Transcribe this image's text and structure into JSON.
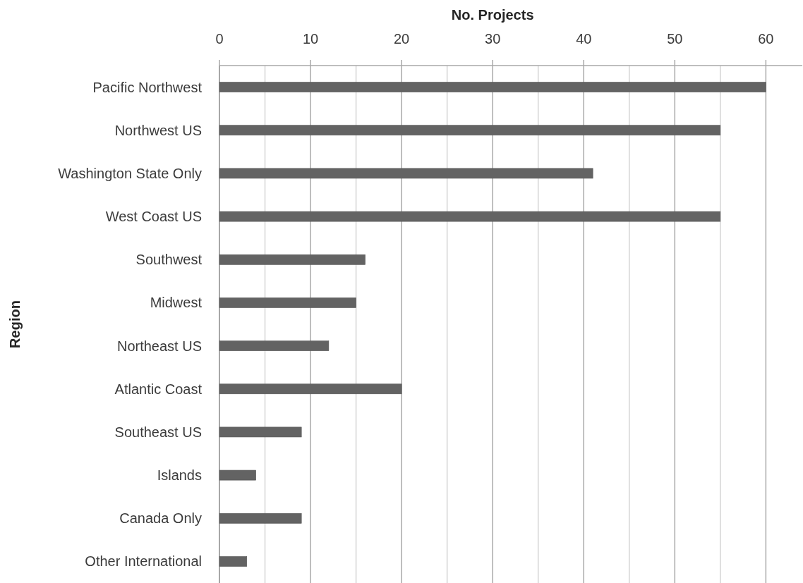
{
  "chart_data": {
    "type": "bar",
    "orientation": "horizontal",
    "xlabel": "No. Projects",
    "ylabel": "Region",
    "categories": [
      "Pacific Northwest",
      "Northwest US",
      "Washington State Only",
      "West Coast US",
      "Southwest",
      "Midwest",
      "Northeast US",
      "Atlantic Coast",
      "Southeast US",
      "Islands",
      "Canada Only",
      "Other International"
    ],
    "values": [
      60,
      55,
      41,
      55,
      16,
      15,
      12,
      20,
      9,
      4,
      9,
      3
    ],
    "color": "#636363",
    "xlim": [
      0,
      64
    ],
    "xticks": [
      0,
      {
        "value": 5,
        "label": null
      },
      10,
      {
        "value": 15,
        "label": null
      },
      20,
      {
        "value": 25,
        "label": null
      },
      30,
      {
        "value": 35,
        "label": null
      },
      40,
      {
        "value": 45,
        "label": null
      },
      50,
      {
        "value": 55,
        "label": null
      },
      60
    ],
    "grid": "x"
  }
}
